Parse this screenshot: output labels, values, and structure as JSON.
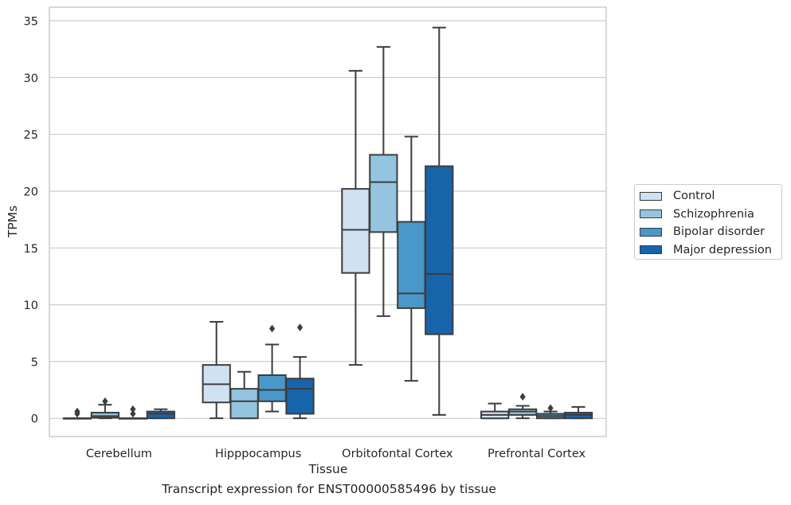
{
  "chart_data": {
    "type": "box",
    "title": "Transcript expression for ENST00000585496 by tissue",
    "xlabel": "Tissue",
    "ylabel": "TPMs",
    "ylim": [
      -1.6,
      36.2
    ],
    "yticks": [
      0,
      5,
      10,
      15,
      20,
      25,
      30,
      35
    ],
    "grid": "horizontal",
    "legend_position": "right",
    "categories": [
      "Cerebellum",
      "Hipppocampus",
      "Orbitofontal Cortex",
      "Prefrontal Cortex"
    ],
    "series": [
      {
        "name": "Control",
        "color": "#d0e1f2",
        "boxes": [
          {
            "min": 0,
            "q1": 0,
            "median": 0,
            "q3": 0,
            "max": 0,
            "outliers": [
              0.4,
              0.6
            ]
          },
          {
            "min": 0,
            "q1": 1.4,
            "median": 3.0,
            "q3": 4.7,
            "max": 8.5,
            "outliers": []
          },
          {
            "min": 4.7,
            "q1": 12.8,
            "median": 16.6,
            "q3": 20.2,
            "max": 30.6,
            "outliers": []
          },
          {
            "min": 0,
            "q1": 0,
            "median": 0.3,
            "q3": 0.6,
            "max": 1.3,
            "outliers": []
          }
        ]
      },
      {
        "name": "Schizophrenia",
        "color": "#94c4df",
        "boxes": [
          {
            "min": 0,
            "q1": 0.05,
            "median": 0.2,
            "q3": 0.5,
            "max": 1.2,
            "outliers": [
              1.5
            ]
          },
          {
            "min": 0,
            "q1": 0,
            "median": 1.5,
            "q3": 2.6,
            "max": 4.1,
            "outliers": []
          },
          {
            "min": 9.0,
            "q1": 16.4,
            "median": 20.8,
            "q3": 23.2,
            "max": 32.7,
            "outliers": []
          },
          {
            "min": 0,
            "q1": 0.3,
            "median": 0.6,
            "q3": 0.8,
            "max": 1.1,
            "outliers": [
              1.9
            ]
          }
        ]
      },
      {
        "name": "Bipolar disorder",
        "color": "#4a98c9",
        "boxes": [
          {
            "min": 0,
            "q1": 0,
            "median": 0,
            "q3": 0,
            "max": 0,
            "outliers": [
              0.4,
              0.8
            ]
          },
          {
            "min": 0.6,
            "q1": 1.5,
            "median": 2.5,
            "q3": 3.8,
            "max": 6.5,
            "outliers": [
              7.9
            ]
          },
          {
            "min": 3.3,
            "q1": 9.7,
            "median": 11.0,
            "q3": 17.3,
            "max": 24.8,
            "outliers": []
          },
          {
            "min": 0,
            "q1": 0,
            "median": 0.2,
            "q3": 0.4,
            "max": 0.6,
            "outliers": [
              0.9
            ]
          }
        ]
      },
      {
        "name": "Major depression",
        "color": "#1764ab",
        "boxes": [
          {
            "min": 0,
            "q1": 0,
            "median": 0.4,
            "q3": 0.6,
            "max": 0.8,
            "outliers": []
          },
          {
            "min": 0,
            "q1": 0.4,
            "median": 2.6,
            "q3": 3.5,
            "max": 5.4,
            "outliers": [
              8.0
            ]
          },
          {
            "min": 0.3,
            "q1": 7.4,
            "median": 12.7,
            "q3": 22.2,
            "max": 34.4,
            "outliers": []
          },
          {
            "min": 0,
            "q1": 0,
            "median": 0.3,
            "q3": 0.5,
            "max": 1.0,
            "outliers": []
          }
        ]
      }
    ]
  }
}
